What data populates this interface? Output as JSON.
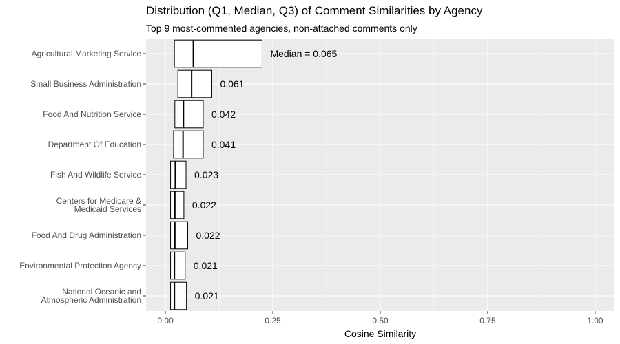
{
  "chart_data": {
    "type": "box",
    "title": "Distribution (Q1, Median, Q3) of Comment Similarities by Agency",
    "subtitle": "Top 9 most-commented agencies, non-attached comments only",
    "xlabel": "Cosine Similarity",
    "ylabel": "",
    "xlim": [
      -0.045,
      1.045
    ],
    "x_ticks": [
      0.0,
      0.25,
      0.5,
      0.75,
      1.0
    ],
    "x_tick_labels": [
      "0.00",
      "0.25",
      "0.50",
      "0.75",
      "1.00"
    ],
    "grid": true,
    "legend": "none",
    "colors": {
      "panel_bg": "#ebebeb",
      "grid": "#ffffff",
      "box_fill": "#ffffff",
      "box_stroke": "#000000",
      "axis_text": "#4d4d4d"
    },
    "agencies": [
      {
        "label_lines": [
          "Agricultural Marketing Service"
        ],
        "q1": 0.021,
        "median": 0.065,
        "q3": 0.225,
        "median_label": "Median = 0.065"
      },
      {
        "label_lines": [
          "Small Business Administration"
        ],
        "q1": 0.029,
        "median": 0.061,
        "q3": 0.108,
        "median_label": "0.061"
      },
      {
        "label_lines": [
          "Food And Nutrition Service"
        ],
        "q1": 0.022,
        "median": 0.042,
        "q3": 0.088,
        "median_label": "0.042"
      },
      {
        "label_lines": [
          "Department Of Education"
        ],
        "q1": 0.019,
        "median": 0.041,
        "q3": 0.088,
        "median_label": "0.041"
      },
      {
        "label_lines": [
          "Fish And Wildlife Service"
        ],
        "q1": 0.012,
        "median": 0.023,
        "q3": 0.048,
        "median_label": "0.023"
      },
      {
        "label_lines": [
          "Centers for Medicare &",
          "Medicaid Services"
        ],
        "q1": 0.012,
        "median": 0.022,
        "q3": 0.043,
        "median_label": "0.022"
      },
      {
        "label_lines": [
          "Food And Drug Administration"
        ],
        "q1": 0.012,
        "median": 0.022,
        "q3": 0.052,
        "median_label": "0.022"
      },
      {
        "label_lines": [
          "Environmental Protection Agency"
        ],
        "q1": 0.012,
        "median": 0.021,
        "q3": 0.046,
        "median_label": "0.021"
      },
      {
        "label_lines": [
          "National Oceanic and",
          "Atmospheric Administration"
        ],
        "q1": 0.012,
        "median": 0.021,
        "q3": 0.049,
        "median_label": "0.021"
      }
    ]
  }
}
